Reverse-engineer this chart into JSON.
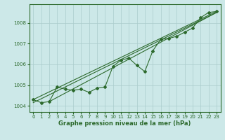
{
  "xlabel": "Graphe pression niveau de la mer (hPa)",
  "bg_color": "#cce8e8",
  "grid_color": "#aacccc",
  "line_color": "#2d6a2d",
  "marker_color": "#2d6a2d",
  "xlim": [
    -0.5,
    23.5
  ],
  "ylim": [
    1003.7,
    1008.9
  ],
  "xticks": [
    0,
    1,
    2,
    3,
    4,
    5,
    6,
    7,
    8,
    9,
    10,
    11,
    12,
    13,
    14,
    15,
    16,
    17,
    18,
    19,
    20,
    21,
    22,
    23
  ],
  "yticks": [
    1004,
    1005,
    1006,
    1007,
    1008
  ],
  "trend1": {
    "x": [
      0,
      23
    ],
    "y": [
      1004.3,
      1008.55
    ]
  },
  "trend2": {
    "x": [
      0,
      23
    ],
    "y": [
      1004.15,
      1008.5
    ]
  },
  "trend3": {
    "x": [
      2,
      23
    ],
    "y": [
      1004.2,
      1008.5
    ]
  },
  "series_markers": {
    "x": [
      0,
      1,
      2,
      3,
      4,
      5,
      6,
      7,
      8,
      9,
      10,
      11,
      12,
      13,
      14,
      15,
      16,
      17,
      18,
      19,
      20,
      21,
      22,
      23
    ],
    "y": [
      1004.3,
      1004.15,
      1004.2,
      1004.9,
      1004.8,
      1004.75,
      1004.8,
      1004.65,
      1004.85,
      1004.9,
      1005.9,
      1006.2,
      1006.3,
      1005.95,
      1005.65,
      1006.65,
      1007.2,
      1007.25,
      1007.35,
      1007.55,
      1007.75,
      1008.25,
      1008.5,
      1008.55
    ]
  }
}
